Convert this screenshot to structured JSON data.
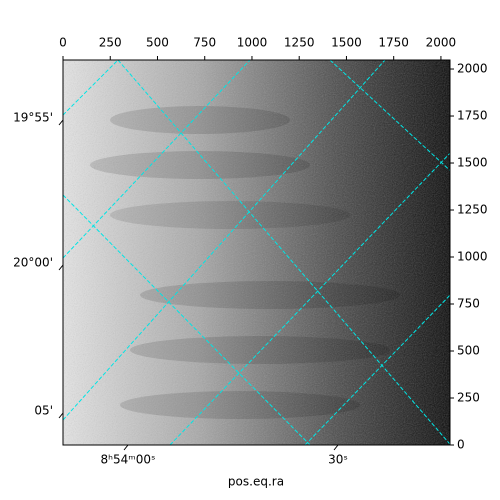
{
  "chart_data": {
    "type": "image",
    "x_label": "pos.eq.ra",
    "xlim": [
      0,
      2048
    ],
    "ylim": [
      0,
      2048
    ],
    "xticks": [
      0,
      250,
      500,
      750,
      1000,
      1250,
      1500,
      1750,
      2000
    ],
    "yticks": [
      0,
      250,
      500,
      750,
      1000,
      1250,
      1500,
      1750,
      2000
    ],
    "ra_ticks": [
      "8ʰ54ᵐ00ˢ",
      "30ˢ"
    ],
    "dec_ticks": [
      "19°55'",
      "20°00'",
      "05'"
    ],
    "grid_color": "#00e5e5"
  }
}
